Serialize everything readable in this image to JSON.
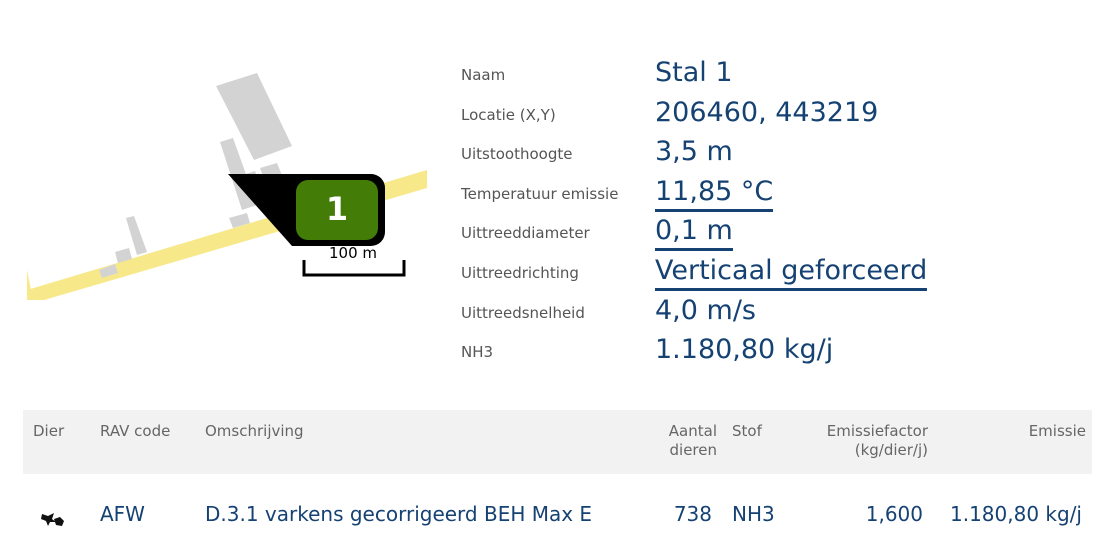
{
  "map": {
    "marker_label": "1",
    "scale_label": "100 m",
    "marker_color": "#447c08",
    "road_color": "#f7e98a",
    "building_color": "#d3d3d3"
  },
  "properties": [
    {
      "label": "Naam",
      "value": "Stal 1",
      "underlined": false
    },
    {
      "label": "Locatie (X,Y)",
      "value": "206460, 443219",
      "underlined": false
    },
    {
      "label": "Uitstoothoogte",
      "value": "3,5 m",
      "underlined": false
    },
    {
      "label": "Temperatuur emissie",
      "value": "11,85 °C",
      "underlined": true
    },
    {
      "label": "Uittreeddiameter",
      "value": "0,1 m",
      "underlined": true
    },
    {
      "label": "Uittreedrichting",
      "value": "Verticaal geforceerd",
      "underlined": true
    },
    {
      "label": "Uittreedsnelheid",
      "value": "4,0 m/s",
      "underlined": false
    },
    {
      "label": "NH3",
      "value": "1.180,80 kg/j",
      "underlined": false
    }
  ],
  "table": {
    "headers": {
      "dier": "Dier",
      "rav": "RAV code",
      "omschrijving": "Omschrijving",
      "aantal_1": "Aantal",
      "aantal_2": "dieren",
      "stof": "Stof",
      "factor_1": "Emissiefactor",
      "factor_2": "(kg/dier/j)",
      "emissie": "Emissie"
    },
    "rows": [
      {
        "icon": "pig-icon",
        "rav": "AFW",
        "omschrijving": "D.3.1 varkens gecorrigeerd BEH Max E",
        "aantal": "738",
        "stof": "NH3",
        "factor": "1,600",
        "emissie": "1.180,80 kg/j"
      }
    ]
  },
  "colors": {
    "value_text": "#154273",
    "label_text": "#555555",
    "header_bg": "#f2f2f2"
  }
}
